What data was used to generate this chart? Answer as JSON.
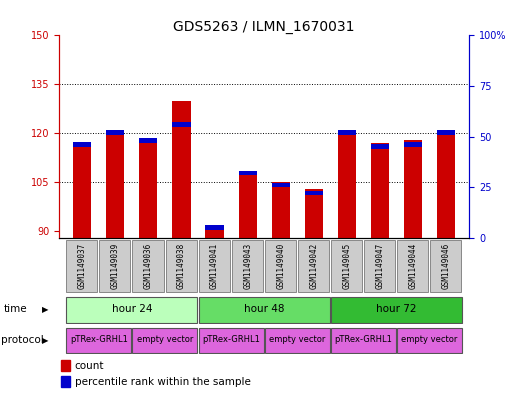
{
  "title": "GDS5263 / ILMN_1670031",
  "samples": [
    "GSM1149037",
    "GSM1149039",
    "GSM1149036",
    "GSM1149038",
    "GSM1149041",
    "GSM1149043",
    "GSM1149040",
    "GSM1149042",
    "GSM1149045",
    "GSM1149047",
    "GSM1149044",
    "GSM1149046"
  ],
  "count_values": [
    116,
    121,
    118,
    130,
    91,
    108,
    105,
    103,
    121,
    117,
    118,
    121
  ],
  "percentile_values": [
    46,
    52,
    48,
    56,
    5,
    32,
    26,
    22,
    52,
    45,
    46,
    52
  ],
  "ylim_left": [
    88,
    150
  ],
  "ylim_right": [
    0,
    100
  ],
  "yticks_left": [
    90,
    105,
    120,
    135,
    150
  ],
  "yticks_right": [
    0,
    25,
    50,
    75,
    100
  ],
  "bar_color": "#cc0000",
  "percentile_color": "#0000cc",
  "time_colors": [
    "#bbffbb",
    "#66dd66",
    "#33bb33"
  ],
  "protocol_color": "#dd66dd",
  "sample_bg_color": "#cccccc",
  "axis_left_color": "#cc0000",
  "axis_right_color": "#0000cc",
  "time_label": "time",
  "protocol_label": "protocol",
  "legend_count": "count",
  "legend_percentile": "percentile rank within the sample",
  "bar_width": 0.55,
  "title_fontsize": 10,
  "tick_fontsize": 7,
  "sample_fontsize": 5.5,
  "band_fontsize": 7.5,
  "legend_fontsize": 7.5,
  "time_groups": [
    {
      "label": "hour 24",
      "start": 0,
      "end": 3
    },
    {
      "label": "hour 48",
      "start": 4,
      "end": 7
    },
    {
      "label": "hour 72",
      "start": 8,
      "end": 11
    }
  ],
  "protocol_groups": [
    {
      "label": "pTRex-GRHL1",
      "start": 0,
      "end": 1
    },
    {
      "label": "empty vector",
      "start": 2,
      "end": 3
    },
    {
      "label": "pTRex-GRHL1",
      "start": 4,
      "end": 5
    },
    {
      "label": "empty vector",
      "start": 6,
      "end": 7
    },
    {
      "label": "pTRex-GRHL1",
      "start": 8,
      "end": 9
    },
    {
      "label": "empty vector",
      "start": 10,
      "end": 11
    }
  ]
}
